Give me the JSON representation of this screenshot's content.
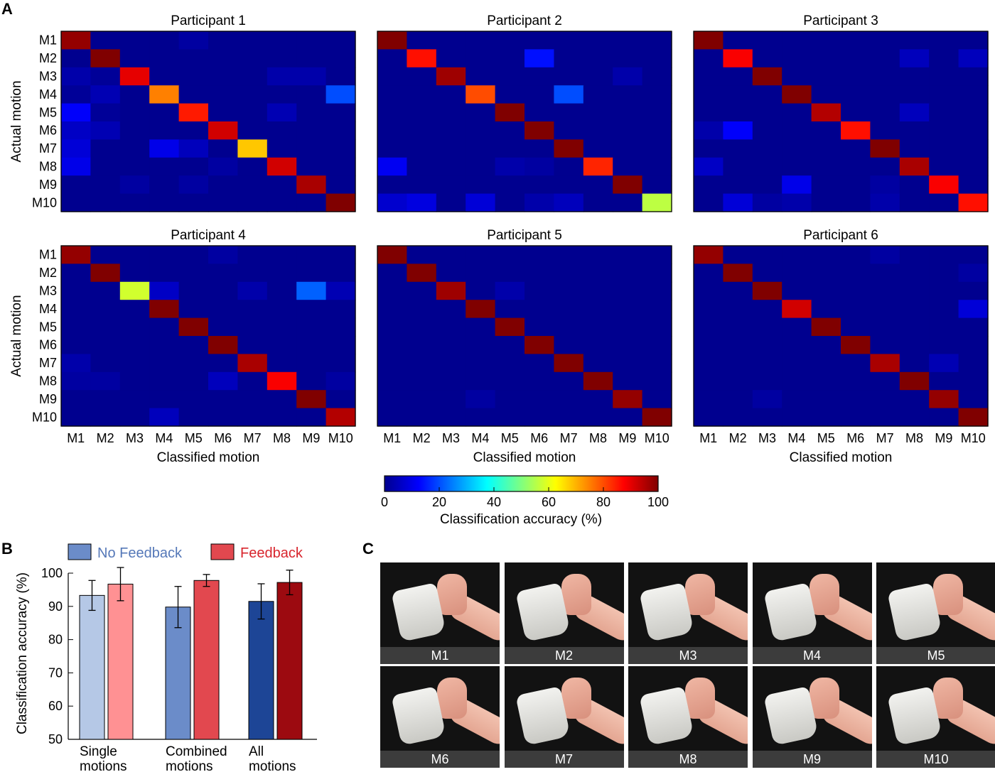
{
  "panels": {
    "a": "A",
    "b": "B",
    "c": "C"
  },
  "heatmap": {
    "motions": [
      "M1",
      "M2",
      "M3",
      "M4",
      "M5",
      "M6",
      "M7",
      "M8",
      "M9",
      "M10"
    ],
    "ylabel": "Actual motion",
    "xlabel": "Classified motion"
  },
  "colorbar": {
    "ticks": [
      "0",
      "20",
      "40",
      "60",
      "80",
      "100"
    ],
    "label": "Classification accuracy (%)"
  },
  "bar": {
    "legend": {
      "no_feedback": "No Feedback",
      "feedback": "Feedback"
    },
    "ylabel": "Classification accuracy (%)",
    "yticks": [
      "50",
      "60",
      "70",
      "80",
      "90",
      "100"
    ],
    "groups": [
      [
        "Single",
        "motions"
      ],
      [
        "Combined",
        "motions"
      ],
      [
        "All",
        "motions"
      ]
    ]
  },
  "photos": {
    "captions": [
      "M1",
      "M2",
      "M3",
      "M4",
      "M5",
      "M6",
      "M7",
      "M8",
      "M9",
      "M10"
    ]
  },
  "colors": {
    "no_feedback": [
      "#b5c8e6",
      "#6b8cc9",
      "#1d4596"
    ],
    "feedback": [
      "#ff9193",
      "#e2484f",
      "#9c0a10"
    ],
    "legend_no_feedback_text": "#5578b8",
    "legend_feedback_text": "#d8252d"
  },
  "chart_data": [
    {
      "type": "heatmap",
      "title": "Participant 1",
      "xlabel": "Classified motion",
      "ylabel": "Actual motion",
      "vmin": 0,
      "vmax": 100,
      "rows": [
        "M1",
        "M2",
        "M3",
        "M4",
        "M5",
        "M6",
        "M7",
        "M8",
        "M9",
        "M10"
      ],
      "cols": [
        "M1",
        "M2",
        "M3",
        "M4",
        "M5",
        "M6",
        "M7",
        "M8",
        "M9",
        "M10"
      ],
      "values": [
        [
          98,
          0,
          0,
          0,
          2,
          0,
          0,
          0,
          0,
          0
        ],
        [
          0,
          100,
          0,
          0,
          0,
          0,
          0,
          0,
          0,
          0
        ],
        [
          3,
          1,
          90,
          0,
          0,
          0,
          0,
          3,
          3,
          0
        ],
        [
          1,
          4,
          0,
          75,
          0,
          0,
          0,
          0,
          0,
          20
        ],
        [
          12,
          1,
          0,
          0,
          85,
          0,
          0,
          4,
          0,
          0
        ],
        [
          6,
          4,
          0,
          0,
          0,
          92,
          0,
          0,
          0,
          0
        ],
        [
          8,
          0,
          0,
          10,
          5,
          0,
          68,
          0,
          0,
          0
        ],
        [
          10,
          0,
          0,
          0,
          0,
          2,
          0,
          92,
          0,
          0
        ],
        [
          0,
          0,
          2,
          0,
          2,
          0,
          0,
          0,
          96,
          0
        ],
        [
          0,
          0,
          0,
          0,
          0,
          0,
          0,
          0,
          0,
          100
        ]
      ]
    },
    {
      "type": "heatmap",
      "title": "Participant 2",
      "xlabel": "Classified motion",
      "ylabel": "Actual motion",
      "vmin": 0,
      "vmax": 100,
      "rows": [
        "M1",
        "M2",
        "M3",
        "M4",
        "M5",
        "M6",
        "M7",
        "M8",
        "M9",
        "M10"
      ],
      "cols": [
        "M1",
        "M2",
        "M3",
        "M4",
        "M5",
        "M6",
        "M7",
        "M8",
        "M9",
        "M10"
      ],
      "values": [
        [
          100,
          0,
          0,
          0,
          0,
          0,
          0,
          0,
          0,
          0
        ],
        [
          0,
          86,
          0,
          0,
          0,
          14,
          0,
          0,
          0,
          0
        ],
        [
          0,
          0,
          97,
          0,
          0,
          0,
          0,
          0,
          3,
          0
        ],
        [
          0,
          0,
          0,
          80,
          0,
          0,
          20,
          0,
          0,
          0
        ],
        [
          0,
          0,
          0,
          0,
          100,
          0,
          0,
          0,
          0,
          0
        ],
        [
          0,
          0,
          0,
          0,
          0,
          100,
          0,
          0,
          0,
          0
        ],
        [
          0,
          0,
          0,
          0,
          0,
          0,
          100,
          0,
          0,
          0
        ],
        [
          11,
          0,
          0,
          0,
          3,
          2,
          0,
          84,
          0,
          0
        ],
        [
          0,
          0,
          0,
          0,
          0,
          0,
          0,
          0,
          100,
          0
        ],
        [
          7,
          9,
          0,
          8,
          0,
          3,
          5,
          0,
          0,
          56
        ]
      ]
    },
    {
      "type": "heatmap",
      "title": "Participant 3",
      "xlabel": "Classified motion",
      "ylabel": "Actual motion",
      "vmin": 0,
      "vmax": 100,
      "rows": [
        "M1",
        "M2",
        "M3",
        "M4",
        "M5",
        "M6",
        "M7",
        "M8",
        "M9",
        "M10"
      ],
      "cols": [
        "M1",
        "M2",
        "M3",
        "M4",
        "M5",
        "M6",
        "M7",
        "M8",
        "M9",
        "M10"
      ],
      "values": [
        [
          100,
          0,
          0,
          0,
          0,
          0,
          0,
          0,
          0,
          0
        ],
        [
          0,
          88,
          0,
          0,
          0,
          0,
          0,
          5,
          0,
          5
        ],
        [
          0,
          0,
          100,
          0,
          0,
          0,
          0,
          0,
          0,
          0
        ],
        [
          0,
          0,
          0,
          100,
          0,
          0,
          0,
          0,
          0,
          0
        ],
        [
          0,
          0,
          0,
          0,
          95,
          0,
          0,
          5,
          0,
          0
        ],
        [
          3,
          12,
          0,
          0,
          0,
          86,
          0,
          0,
          0,
          0
        ],
        [
          0,
          0,
          0,
          0,
          0,
          0,
          100,
          0,
          0,
          0
        ],
        [
          6,
          0,
          0,
          0,
          0,
          0,
          0,
          96,
          0,
          0
        ],
        [
          0,
          0,
          0,
          10,
          0,
          0,
          2,
          0,
          88,
          0
        ],
        [
          0,
          8,
          2,
          3,
          0,
          0,
          3,
          0,
          0,
          86
        ]
      ]
    },
    {
      "type": "heatmap",
      "title": "Participant 4",
      "xlabel": "Classified motion",
      "ylabel": "Actual motion",
      "vmin": 0,
      "vmax": 100,
      "rows": [
        "M1",
        "M2",
        "M3",
        "M4",
        "M5",
        "M6",
        "M7",
        "M8",
        "M9",
        "M10"
      ],
      "cols": [
        "M1",
        "M2",
        "M3",
        "M4",
        "M5",
        "M6",
        "M7",
        "M8",
        "M9",
        "M10"
      ],
      "values": [
        [
          98,
          0,
          0,
          0,
          0,
          2,
          0,
          0,
          0,
          0
        ],
        [
          0,
          100,
          0,
          0,
          0,
          0,
          0,
          0,
          0,
          0
        ],
        [
          0,
          0,
          58,
          6,
          0,
          0,
          3,
          0,
          22,
          4
        ],
        [
          0,
          0,
          0,
          100,
          0,
          0,
          0,
          0,
          0,
          0
        ],
        [
          0,
          0,
          0,
          0,
          100,
          0,
          0,
          0,
          0,
          0
        ],
        [
          0,
          0,
          0,
          0,
          0,
          100,
          0,
          0,
          0,
          0
        ],
        [
          3,
          0,
          0,
          0,
          0,
          0,
          96,
          0,
          0,
          0
        ],
        [
          2,
          2,
          0,
          0,
          0,
          5,
          0,
          88,
          0,
          2
        ],
        [
          0,
          0,
          0,
          0,
          0,
          0,
          0,
          0,
          100,
          0
        ],
        [
          0,
          0,
          0,
          5,
          0,
          0,
          0,
          0,
          0,
          95
        ]
      ]
    },
    {
      "type": "heatmap",
      "title": "Participant 5",
      "xlabel": "Classified motion",
      "ylabel": "Actual motion",
      "vmin": 0,
      "vmax": 100,
      "rows": [
        "M1",
        "M2",
        "M3",
        "M4",
        "M5",
        "M6",
        "M7",
        "M8",
        "M9",
        "M10"
      ],
      "cols": [
        "M1",
        "M2",
        "M3",
        "M4",
        "M5",
        "M6",
        "M7",
        "M8",
        "M9",
        "M10"
      ],
      "values": [
        [
          100,
          0,
          0,
          0,
          0,
          0,
          0,
          0,
          0,
          0
        ],
        [
          0,
          100,
          0,
          0,
          0,
          0,
          0,
          0,
          0,
          0
        ],
        [
          0,
          0,
          97,
          0,
          3,
          0,
          0,
          0,
          0,
          0
        ],
        [
          0,
          0,
          0,
          100,
          0,
          0,
          0,
          0,
          0,
          0
        ],
        [
          0,
          0,
          0,
          0,
          100,
          0,
          0,
          0,
          0,
          0
        ],
        [
          0,
          0,
          0,
          0,
          0,
          100,
          0,
          0,
          0,
          0
        ],
        [
          0,
          0,
          0,
          0,
          0,
          0,
          100,
          0,
          0,
          0
        ],
        [
          0,
          0,
          0,
          0,
          0,
          0,
          0,
          100,
          0,
          0
        ],
        [
          0,
          0,
          0,
          2,
          0,
          0,
          0,
          0,
          98,
          0
        ],
        [
          0,
          0,
          0,
          0,
          0,
          0,
          0,
          0,
          0,
          100
        ]
      ]
    },
    {
      "type": "heatmap",
      "title": "Participant 6",
      "xlabel": "Classified motion",
      "ylabel": "Actual motion",
      "vmin": 0,
      "vmax": 100,
      "rows": [
        "M1",
        "M2",
        "M3",
        "M4",
        "M5",
        "M6",
        "M7",
        "M8",
        "M9",
        "M10"
      ],
      "cols": [
        "M1",
        "M2",
        "M3",
        "M4",
        "M5",
        "M6",
        "M7",
        "M8",
        "M9",
        "M10"
      ],
      "values": [
        [
          98,
          0,
          0,
          0,
          0,
          0,
          2,
          0,
          0,
          0
        ],
        [
          0,
          100,
          0,
          0,
          0,
          0,
          0,
          0,
          0,
          2
        ],
        [
          0,
          0,
          100,
          0,
          0,
          0,
          0,
          0,
          0,
          0
        ],
        [
          0,
          0,
          0,
          92,
          0,
          0,
          0,
          0,
          0,
          8
        ],
        [
          0,
          0,
          0,
          0,
          100,
          0,
          0,
          0,
          0,
          0
        ],
        [
          0,
          0,
          0,
          0,
          0,
          100,
          0,
          0,
          0,
          0
        ],
        [
          0,
          0,
          0,
          0,
          0,
          0,
          96,
          0,
          4,
          0
        ],
        [
          0,
          0,
          0,
          0,
          0,
          0,
          0,
          100,
          0,
          0
        ],
        [
          0,
          0,
          2,
          0,
          0,
          0,
          0,
          0,
          98,
          0
        ],
        [
          0,
          0,
          0,
          0,
          0,
          0,
          0,
          0,
          0,
          100
        ]
      ]
    },
    {
      "type": "bar",
      "categories": [
        "Single motions",
        "Combined motions",
        "All motions"
      ],
      "ylabel": "Classification accuracy (%)",
      "ylim": [
        50,
        100
      ],
      "legend": "top",
      "series": [
        {
          "name": "No Feedback",
          "values": [
            93.3,
            89.8,
            91.5
          ],
          "errors": [
            4.5,
            6.2,
            5.3
          ]
        },
        {
          "name": "Feedback",
          "values": [
            96.7,
            97.8,
            97.2
          ],
          "errors": [
            5.0,
            1.8,
            3.7
          ]
        }
      ]
    }
  ]
}
